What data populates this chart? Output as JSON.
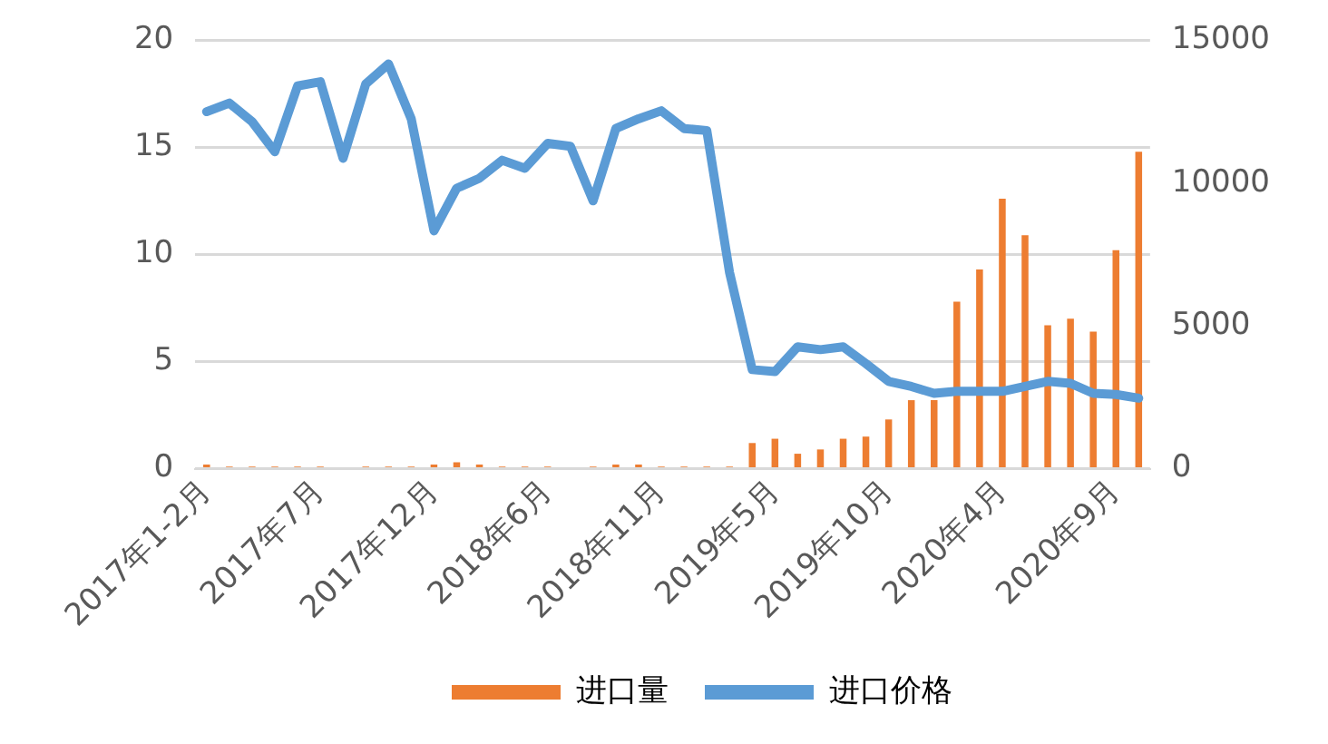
{
  "chart_data": {
    "type": "bar",
    "categories": [
      "2017年1-2月",
      null,
      null,
      null,
      null,
      "2017年7月",
      null,
      null,
      null,
      null,
      "2017年12月",
      null,
      null,
      null,
      null,
      "2018年6月",
      null,
      null,
      null,
      null,
      "2018年11月",
      null,
      null,
      null,
      null,
      "2019年5月",
      null,
      null,
      null,
      null,
      "2019年10月",
      null,
      null,
      null,
      null,
      "2020年4月",
      null,
      null,
      null,
      null,
      "2020年9月",
      null
    ],
    "series": [
      {
        "name": "进口量",
        "color": "#ed7d31",
        "values": [
          0.2,
          0.1,
          0.1,
          0.1,
          0.1,
          0.1,
          0,
          0.1,
          0.1,
          0.1,
          0.2,
          0.3,
          0.2,
          0.1,
          0.1,
          0.1,
          0,
          0.1,
          0.2,
          0.2,
          0.1,
          0.1,
          0.1,
          0.1,
          1.2,
          1.4,
          0.7,
          0.9,
          1.4,
          1.5,
          2.3,
          3.2,
          3.2,
          7.8,
          9.3,
          12.6,
          10.9,
          6.7,
          7.0,
          6.4,
          10.2,
          14.8
        ]
      },
      {
        "name": "进口价格",
        "type": "line",
        "axis": "y2",
        "color": "#5b9bd5",
        "values": [
          12500,
          12800,
          12150,
          11100,
          13400,
          13550,
          10870,
          13470,
          14170,
          12250,
          8330,
          9820,
          10170,
          10800,
          10520,
          11390,
          11290,
          9380,
          11910,
          12250,
          12530,
          11910,
          11840,
          6880,
          3470,
          3400,
          4270,
          4170,
          4270,
          3680,
          3060,
          2880,
          2640,
          2710,
          2710,
          2710,
          2880,
          3060,
          2990,
          2640,
          2600,
          2470
        ]
      }
    ],
    "ylim": [
      0,
      20
    ],
    "yticks": [
      0,
      5,
      10,
      15,
      20
    ],
    "y2lim": [
      0,
      15000
    ],
    "y2ticks": [
      0,
      5000,
      10000,
      15000
    ],
    "grid": "y",
    "legend": "bottom",
    "marker": "none",
    "line_style": "solid"
  }
}
